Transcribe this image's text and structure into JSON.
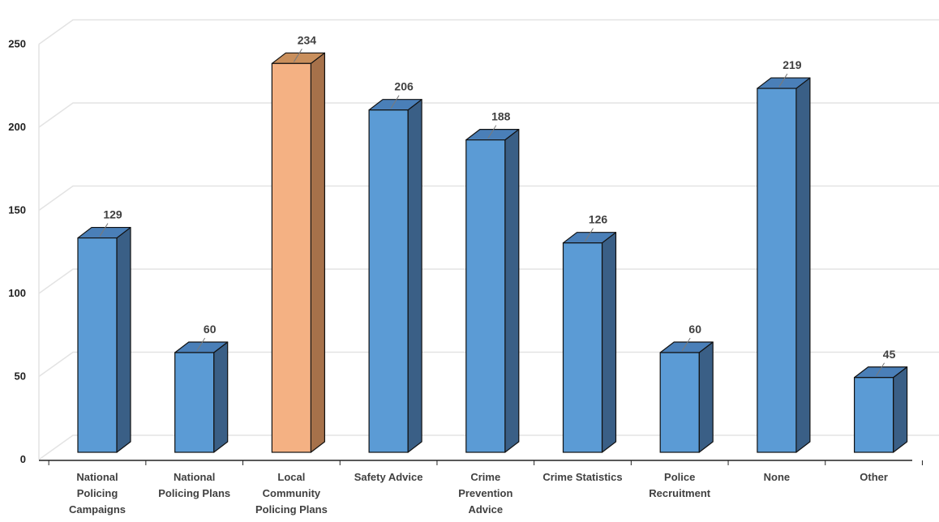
{
  "chart_data": {
    "type": "bar",
    "title": "",
    "xlabel": "",
    "ylabel": "",
    "ylim": [
      0,
      250
    ],
    "yticks": [
      0,
      50,
      100,
      150,
      200,
      250
    ],
    "grid": true,
    "style": "3d-column",
    "colors": {
      "default_front": "#5b9bd5",
      "default_top": "#4a7fb8",
      "default_side": "#3a5f86",
      "highlight_front": "#f4b183",
      "highlight_top": "#c98f5c",
      "highlight_side": "#a6714a",
      "grid": "#e3e3e3",
      "axis": "#222222",
      "label_text": "#404040",
      "leader_line": "#7a7a7a"
    },
    "highlight_index": 2,
    "categories": [
      [
        "National",
        "Policing",
        "Campaigns"
      ],
      [
        "National",
        "Policing Plans"
      ],
      [
        "Local",
        "Community",
        "Policing Plans"
      ],
      [
        "Safety Advice"
      ],
      [
        "Crime",
        "Prevention",
        "Advice"
      ],
      [
        "Crime Statistics"
      ],
      [
        "Police",
        "Recruitment"
      ],
      [
        "None"
      ],
      [
        "Other"
      ]
    ],
    "values": [
      129,
      60,
      234,
      206,
      188,
      126,
      60,
      219,
      45
    ]
  }
}
